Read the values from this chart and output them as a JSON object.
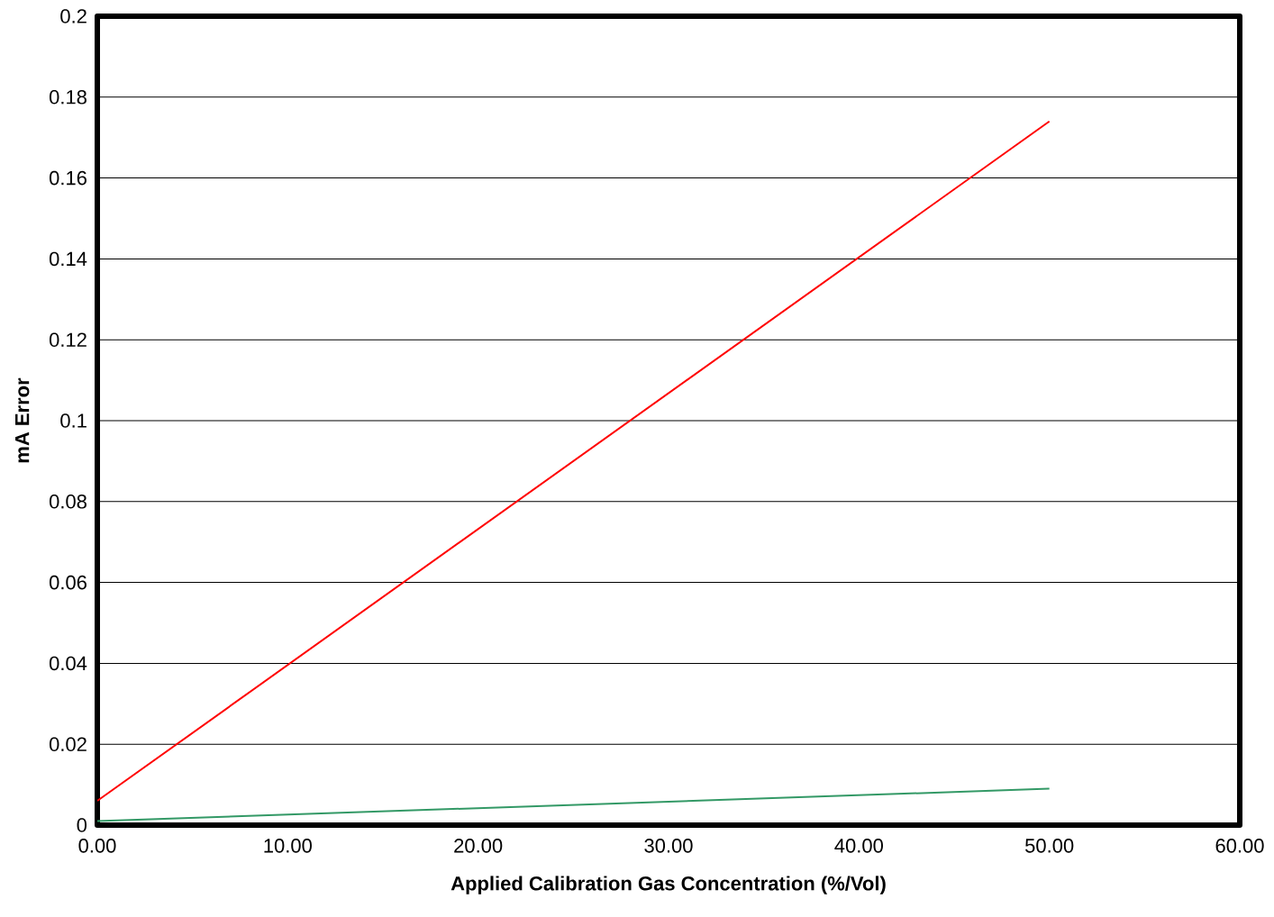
{
  "chart_data": {
    "type": "line",
    "xlabel": "Applied Calibration Gas Concentration (%/Vol)",
    "ylabel": "mA Error",
    "xlim": [
      0,
      60
    ],
    "xticks": [
      {
        "value": 0,
        "label": "0.00"
      },
      {
        "value": 10,
        "label": "10.00"
      },
      {
        "value": 20,
        "label": "20.00"
      },
      {
        "value": 30,
        "label": "30.00"
      },
      {
        "value": 40,
        "label": "40.00"
      },
      {
        "value": 50,
        "label": "50.00"
      },
      {
        "value": 60,
        "label": "60.00"
      }
    ],
    "ylim": [
      0,
      0.2
    ],
    "yticks": [
      0,
      0.02,
      0.04,
      0.06,
      0.08,
      0.1,
      0.12,
      0.14,
      0.16,
      0.18,
      0.2
    ],
    "grid": "y",
    "marker": "none",
    "line_style": "solid",
    "x": [
      0,
      50
    ],
    "series": [
      {
        "color": "#ff0000",
        "values": [
          0.006,
          0.174
        ]
      },
      {
        "color": "#339966",
        "values": [
          0.001,
          0.009
        ]
      }
    ]
  }
}
